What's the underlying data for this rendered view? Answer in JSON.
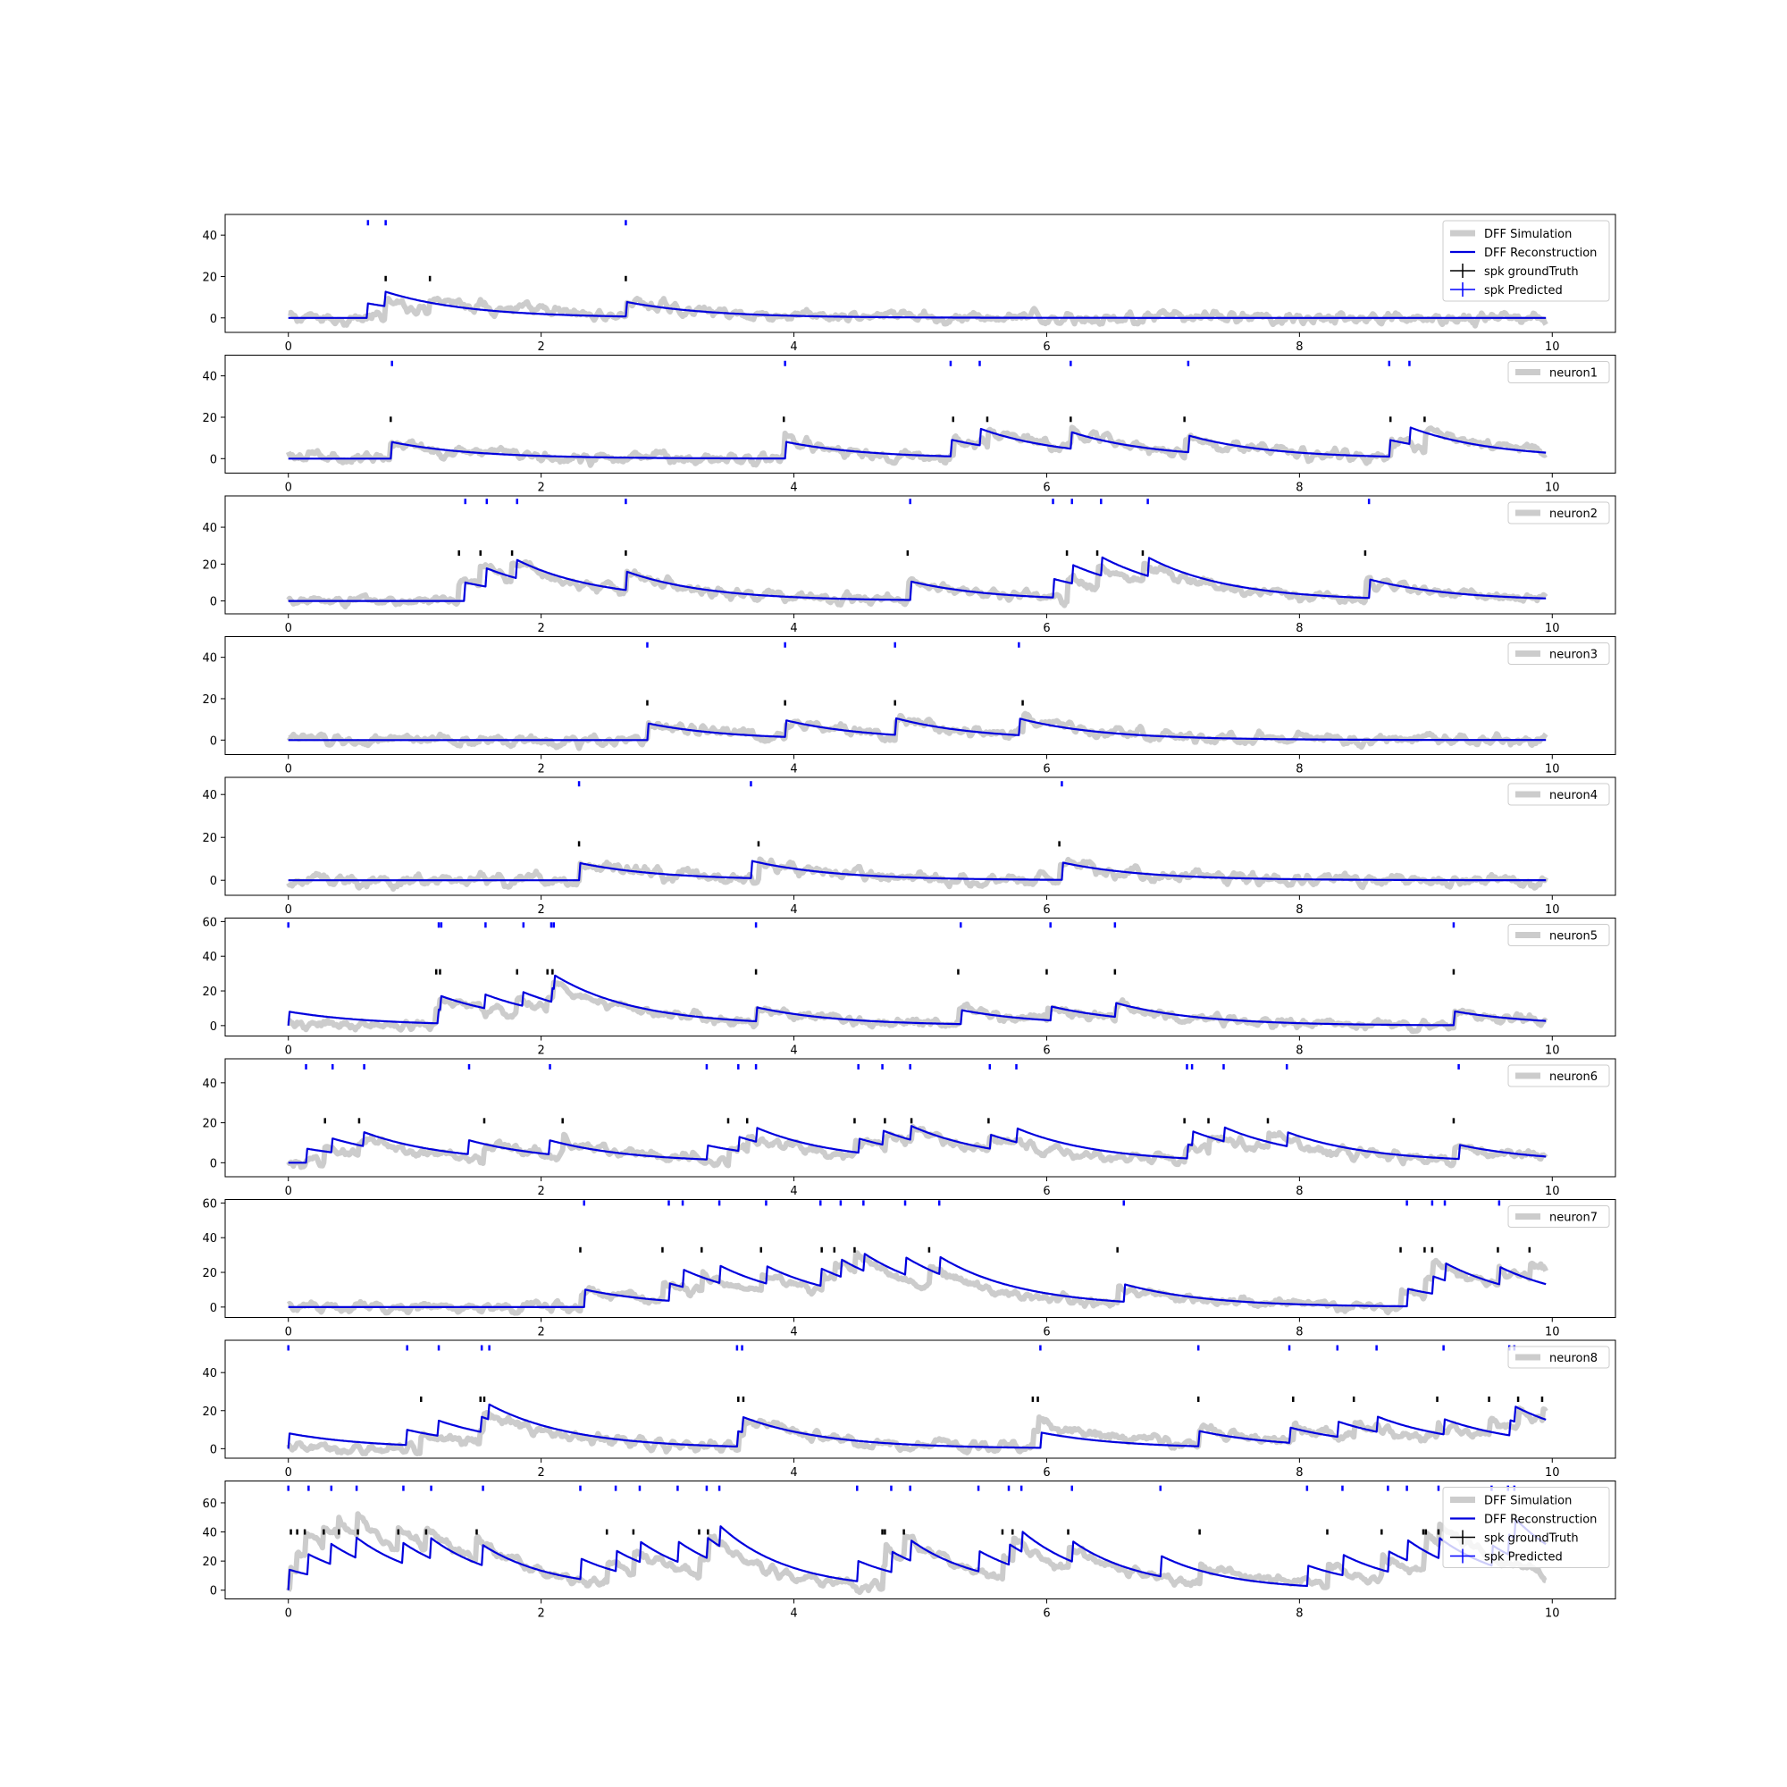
{
  "figure": {
    "colors": {
      "simulation": "#cccccc",
      "reconstruction": "#0000dd",
      "ground_truth": "#000000",
      "predicted": "#0000ff",
      "axes": "#000000",
      "legend_border": "#cccccc"
    }
  },
  "chart_data": [
    {
      "type": "line",
      "xlim": [
        -0.5,
        10.5
      ],
      "ylim": [
        -7,
        50
      ],
      "xticks": [
        0,
        2,
        4,
        6,
        8,
        10
      ],
      "yticks": [
        0,
        20,
        40
      ],
      "legend": [
        "DFF Simulation",
        "DFF Reconstruction",
        "spk groundTruth",
        "spk Predicted"
      ],
      "legend_loc": "upper right",
      "gt_y": 19,
      "pred_y": 46,
      "ground_truth_spikes": [
        0.77,
        1.12,
        2.67
      ],
      "predicted_spikes": [
        0.63,
        0.77,
        2.67
      ],
      "reconstruction_amplitude": 7,
      "tau": 0.65,
      "noise": 2.5
    },
    {
      "type": "line",
      "xlim": [
        -0.5,
        10.5
      ],
      "ylim": [
        -7,
        50
      ],
      "xticks": [
        0,
        2,
        4,
        6,
        8,
        10
      ],
      "yticks": [
        0,
        20,
        40
      ],
      "legend": [
        "neuron1"
      ],
      "legend_loc": "upper right",
      "gt_y": 19,
      "pred_y": 46,
      "ground_truth_spikes": [
        0.81,
        3.92,
        5.26,
        5.53,
        6.19,
        7.09,
        8.72,
        8.99
      ],
      "predicted_spikes": [
        0.82,
        3.93,
        5.24,
        5.47,
        6.19,
        7.12,
        8.71,
        8.87
      ],
      "reconstruction_amplitude": 8,
      "tau": 0.65,
      "noise": 2.5
    },
    {
      "type": "line",
      "xlim": [
        -0.5,
        10.5
      ],
      "ylim": [
        -7,
        57
      ],
      "xticks": [
        0,
        2,
        4,
        6,
        8,
        10
      ],
      "yticks": [
        0,
        20,
        40
      ],
      "legend": [
        "neuron2"
      ],
      "legend_loc": "upper right",
      "gt_y": 26,
      "pred_y": 54,
      "ground_truth_spikes": [
        1.35,
        1.52,
        1.77,
        2.67,
        4.9,
        6.16,
        6.4,
        6.76,
        8.52
      ],
      "predicted_spikes": [
        1.4,
        1.57,
        1.81,
        2.67,
        4.92,
        6.05,
        6.2,
        6.43,
        6.8,
        8.55
      ],
      "reconstruction_amplitude": 10,
      "tau": 0.65,
      "noise": 2.5
    },
    {
      "type": "line",
      "xlim": [
        -0.5,
        10.5
      ],
      "ylim": [
        -7,
        50
      ],
      "xticks": [
        0,
        2,
        4,
        6,
        8,
        10
      ],
      "yticks": [
        0,
        20,
        40
      ],
      "legend": [
        "neuron3"
      ],
      "legend_loc": "upper right",
      "gt_y": 18,
      "pred_y": 46,
      "ground_truth_spikes": [
        2.84,
        3.93,
        4.8,
        5.81
      ],
      "predicted_spikes": [
        2.84,
        3.93,
        4.8,
        5.78
      ],
      "reconstruction_amplitude": 8,
      "tau": 0.65,
      "noise": 2.5
    },
    {
      "type": "line",
      "xlim": [
        -0.5,
        10.5
      ],
      "ylim": [
        -7,
        48
      ],
      "xticks": [
        0,
        2,
        4,
        6,
        8,
        10
      ],
      "yticks": [
        0,
        20,
        40
      ],
      "legend": [
        "neuron4"
      ],
      "legend_loc": "upper right",
      "gt_y": 17,
      "pred_y": 45,
      "ground_truth_spikes": [
        2.3,
        3.72,
        6.1
      ],
      "predicted_spikes": [
        2.3,
        3.66,
        6.12
      ],
      "reconstruction_amplitude": 8,
      "tau": 0.65,
      "noise": 2.5
    },
    {
      "type": "line",
      "xlim": [
        -0.5,
        10.5
      ],
      "ylim": [
        -6,
        62
      ],
      "xticks": [
        0,
        2,
        4,
        6,
        8,
        10
      ],
      "yticks": [
        0,
        20,
        40,
        60
      ],
      "legend": [
        "neuron5"
      ],
      "legend_loc": "upper right",
      "gt_y": 31,
      "pred_y": 58,
      "ground_truth_spikes": [
        1.17,
        1.2,
        1.81,
        2.05,
        2.09,
        3.7,
        5.3,
        6.0,
        6.54,
        9.22
      ],
      "predicted_spikes": [
        0.0,
        1.19,
        1.21,
        1.56,
        1.86,
        2.08,
        2.1,
        3.7,
        5.32,
        6.03,
        6.54,
        9.22
      ],
      "reconstruction_amplitude": 8,
      "tau": 0.65,
      "noise": 2.5
    },
    {
      "type": "line",
      "xlim": [
        -0.5,
        10.5
      ],
      "ylim": [
        -7,
        52
      ],
      "xticks": [
        0,
        2,
        4,
        6,
        8,
        10
      ],
      "yticks": [
        0,
        20,
        40
      ],
      "legend": [
        "neuron6"
      ],
      "legend_loc": "upper right",
      "gt_y": 21,
      "pred_y": 48,
      "ground_truth_spikes": [
        0.29,
        0.56,
        1.55,
        2.17,
        3.48,
        3.63,
        4.48,
        4.72,
        4.93,
        5.54,
        7.09,
        7.28,
        7.75,
        9.22
      ],
      "predicted_spikes": [
        0.14,
        0.35,
        0.6,
        1.43,
        2.07,
        3.31,
        3.56,
        3.7,
        4.51,
        4.7,
        4.92,
        5.55,
        5.76,
        7.11,
        7.15,
        7.4,
        7.9,
        9.26
      ],
      "reconstruction_amplitude": 7,
      "tau": 0.65,
      "noise": 2.5
    },
    {
      "type": "line",
      "xlim": [
        -0.5,
        10.5
      ],
      "ylim": [
        -6,
        62
      ],
      "xticks": [
        0,
        2,
        4,
        6,
        8,
        10
      ],
      "yticks": [
        0,
        20,
        40,
        60
      ],
      "legend": [
        "neuron7"
      ],
      "legend_loc": "upper right",
      "gt_y": 33,
      "pred_y": 60,
      "ground_truth_spikes": [
        2.31,
        2.96,
        3.27,
        3.74,
        4.22,
        4.32,
        4.48,
        5.07,
        6.56,
        8.8,
        8.99,
        9.05,
        9.57,
        9.82
      ],
      "predicted_spikes": [
        2.34,
        3.01,
        3.12,
        3.41,
        3.78,
        4.21,
        4.37,
        4.55,
        4.88,
        5.15,
        6.61,
        8.85,
        9.05,
        9.15,
        9.58
      ],
      "reconstruction_amplitude": 10,
      "tau": 0.65,
      "noise": 2.5
    },
    {
      "type": "line",
      "xlim": [
        -0.5,
        10.5
      ],
      "ylim": [
        -5,
        57
      ],
      "xticks": [
        0,
        2,
        4,
        6,
        8,
        10
      ],
      "yticks": [
        0,
        20,
        40
      ],
      "legend": [
        "neuron8"
      ],
      "legend_loc": "upper right",
      "gt_y": 26,
      "pred_y": 53,
      "ground_truth_spikes": [
        1.05,
        1.52,
        1.55,
        3.56,
        3.6,
        5.89,
        5.93,
        7.2,
        7.95,
        8.43,
        9.09,
        9.5,
        9.73,
        9.92
      ],
      "predicted_spikes": [
        0.0,
        0.94,
        1.19,
        1.53,
        1.59,
        3.55,
        3.59,
        5.95,
        7.2,
        7.92,
        8.3,
        8.61,
        9.14,
        9.66,
        9.7
      ],
      "reconstruction_amplitude": 8,
      "tau": 0.65,
      "noise": 2.5
    },
    {
      "type": "line",
      "xlim": [
        -0.5,
        10.5
      ],
      "ylim": [
        -6,
        75
      ],
      "xticks": [
        0,
        2,
        4,
        6,
        8,
        10
      ],
      "yticks": [
        0,
        20,
        40,
        60
      ],
      "legend": [
        "DFF Simulation",
        "DFF Reconstruction",
        "spk groundTruth",
        "spk Predicted"
      ],
      "legend_loc": "upper right",
      "gt_y": 40,
      "pred_y": 70,
      "ground_truth_spikes": [
        0.02,
        0.07,
        0.13,
        0.28,
        0.4,
        0.55,
        0.87,
        1.09,
        1.49,
        2.52,
        2.73,
        3.25,
        3.32,
        4.7,
        4.72,
        4.87,
        5.65,
        5.73,
        6.17,
        7.21,
        8.22,
        8.65,
        8.98,
        9.0,
        9.1
      ],
      "predicted_spikes": [
        0.0,
        0.16,
        0.34,
        0.54,
        0.91,
        1.13,
        1.54,
        2.31,
        2.59,
        2.78,
        3.08,
        3.31,
        3.41,
        4.5,
        4.77,
        4.92,
        5.46,
        5.7,
        5.8,
        6.2,
        6.9,
        8.06,
        8.34,
        8.7,
        8.85,
        9.1,
        9.52,
        9.65,
        9.7
      ],
      "reconstruction_amplitude": 14,
      "tau": 0.55,
      "noise": 3
    }
  ]
}
